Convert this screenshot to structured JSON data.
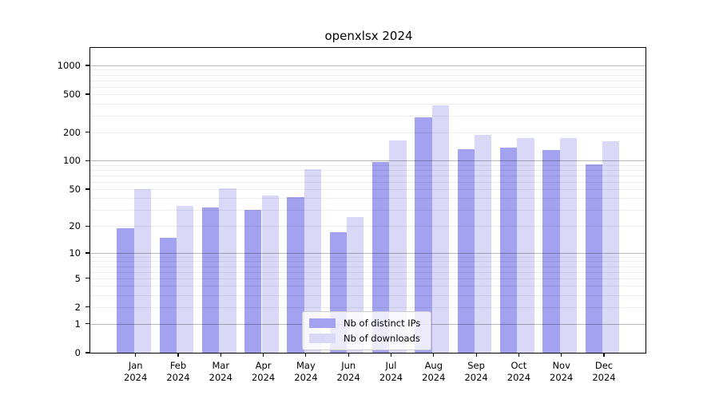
{
  "chart_data": {
    "type": "bar",
    "title": "openxlsx 2024",
    "categories": [
      {
        "label": "Jan",
        "sublabel": "2024"
      },
      {
        "label": "Feb",
        "sublabel": "2024"
      },
      {
        "label": "Mar",
        "sublabel": "2024"
      },
      {
        "label": "Apr",
        "sublabel": "2024"
      },
      {
        "label": "May",
        "sublabel": "2024"
      },
      {
        "label": "Jun",
        "sublabel": "2024"
      },
      {
        "label": "Jul",
        "sublabel": "2024"
      },
      {
        "label": "Aug",
        "sublabel": "2024"
      },
      {
        "label": "Sep",
        "sublabel": "2024"
      },
      {
        "label": "Oct",
        "sublabel": "2024"
      },
      {
        "label": "Nov",
        "sublabel": "2024"
      },
      {
        "label": "Dec",
        "sublabel": "2024"
      }
    ],
    "series": [
      {
        "name": "Nb of distinct IPs",
        "color": "#a2a2f0",
        "values": [
          19,
          15,
          32,
          30,
          41,
          17,
          97,
          289,
          133,
          138,
          130,
          92
        ]
      },
      {
        "name": "Nb of downloads",
        "color": "#d9d9f7",
        "values": [
          50,
          33,
          51,
          43,
          82,
          25,
          163,
          385,
          186,
          174,
          172,
          161
        ]
      }
    ],
    "y_axis": {
      "scale": "pseudo-log log10(value+1)",
      "ticks": [
        0,
        1,
        2,
        5,
        10,
        20,
        50,
        100,
        200,
        500,
        1000
      ],
      "range": [
        0,
        1500
      ]
    },
    "x_axis": {
      "label_lines": 2
    },
    "grid": {
      "major_lines": [
        1,
        10,
        100,
        1000
      ],
      "minor_lines": [
        2,
        3,
        4,
        5,
        6,
        7,
        8,
        9,
        20,
        30,
        40,
        50,
        60,
        70,
        80,
        90,
        200,
        300,
        400,
        500,
        600,
        700,
        800,
        900
      ]
    },
    "legend": {
      "position": "bottom-center",
      "entries": [
        "Nb of distinct IPs",
        "Nb of downloads"
      ]
    }
  }
}
